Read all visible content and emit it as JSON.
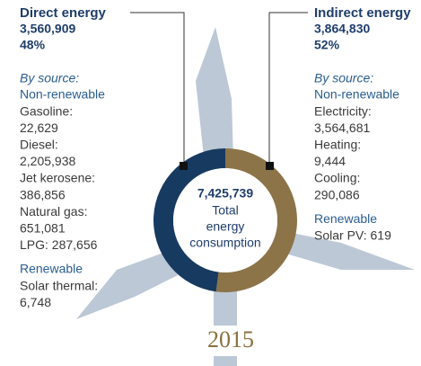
{
  "chart_data": {
    "type": "donut",
    "categories": [
      "Direct energy",
      "Indirect energy"
    ],
    "values": [
      3560909,
      3864830
    ],
    "value_labels": [
      "3,560,909",
      "3,864,830"
    ],
    "shares": [
      48,
      52
    ],
    "share_labels": [
      "48%",
      "52%"
    ],
    "colors": [
      "#173a60",
      "#8c7448"
    ],
    "center_value": "7,425,739",
    "center_label": [
      "Total",
      "energy",
      "consumption"
    ],
    "year": "2015",
    "breakdown": [
      {
        "by_source": "By source:",
        "groups": [
          {
            "name": "Non-renewable",
            "lines": [
              "Gasoline:",
              "22,629",
              "Diesel:",
              "2,205,938",
              "Jet kerosene:",
              "386,856",
              "Natural gas:",
              "651,081",
              "LPG: 287,656"
            ]
          },
          {
            "name": "Renewable",
            "lines": [
              "Solar thermal:",
              "6,748"
            ]
          }
        ]
      },
      {
        "by_source": "By source:",
        "groups": [
          {
            "name": "Non-renewable",
            "lines": [
              "Electricity:",
              "3,564,681",
              "Heating:",
              "9,444",
              "Cooling:",
              "290,086"
            ]
          },
          {
            "name": "Renewable",
            "lines": [
              "Solar PV: 619"
            ]
          }
        ]
      }
    ]
  }
}
